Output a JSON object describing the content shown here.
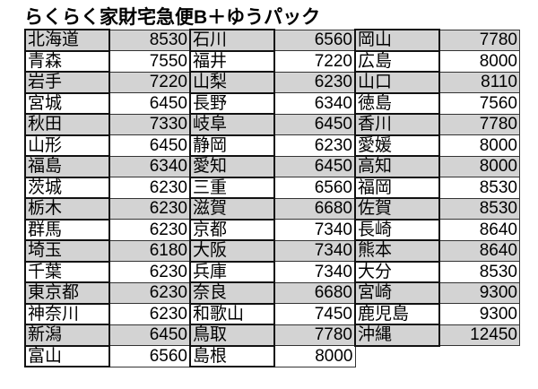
{
  "title": "らくらく家財宅急便B＋ゆうパック",
  "colors": {
    "shaded_row": "#d3d3d3",
    "border": "#111111"
  },
  "rows": [
    [
      [
        "北海道",
        "8530"
      ],
      [
        "石川",
        "6560"
      ],
      [
        "岡山",
        "7780"
      ]
    ],
    [
      [
        "青森",
        "7550"
      ],
      [
        "福井",
        "7220"
      ],
      [
        "広島",
        "8000"
      ]
    ],
    [
      [
        "岩手",
        "7220"
      ],
      [
        "山梨",
        "6230"
      ],
      [
        "山口",
        "8110"
      ]
    ],
    [
      [
        "宮城",
        "6450"
      ],
      [
        "長野",
        "6340"
      ],
      [
        "徳島",
        "7560"
      ]
    ],
    [
      [
        "秋田",
        "7330"
      ],
      [
        "岐阜",
        "6450"
      ],
      [
        "香川",
        "7780"
      ]
    ],
    [
      [
        "山形",
        "6450"
      ],
      [
        "静岡",
        "6230"
      ],
      [
        "愛媛",
        "8000"
      ]
    ],
    [
      [
        "福島",
        "6340"
      ],
      [
        "愛知",
        "6450"
      ],
      [
        "高知",
        "8000"
      ]
    ],
    [
      [
        "茨城",
        "6230"
      ],
      [
        "三重",
        "6560"
      ],
      [
        "福岡",
        "8530"
      ]
    ],
    [
      [
        "栃木",
        "6230"
      ],
      [
        "滋賀",
        "6680"
      ],
      [
        "佐賀",
        "8530"
      ]
    ],
    [
      [
        "群馬",
        "6230"
      ],
      [
        "京都",
        "7340"
      ],
      [
        "長崎",
        "8640"
      ]
    ],
    [
      [
        "埼玉",
        "6180"
      ],
      [
        "大阪",
        "7340"
      ],
      [
        "熊本",
        "8640"
      ]
    ],
    [
      [
        "千葉",
        "6230"
      ],
      [
        "兵庫",
        "7340"
      ],
      [
        "大分",
        "8530"
      ]
    ],
    [
      [
        "東京都",
        "6230"
      ],
      [
        "奈良",
        "6680"
      ],
      [
        "宮崎",
        "9300"
      ]
    ],
    [
      [
        "神奈川",
        "6230"
      ],
      [
        "和歌山",
        "7450"
      ],
      [
        "鹿児島",
        "9300"
      ]
    ],
    [
      [
        "新潟",
        "6450"
      ],
      [
        "鳥取",
        "7780"
      ],
      [
        "沖縄",
        "12450"
      ]
    ],
    [
      [
        "富山",
        "6560"
      ],
      [
        "島根",
        "8000"
      ]
    ]
  ]
}
